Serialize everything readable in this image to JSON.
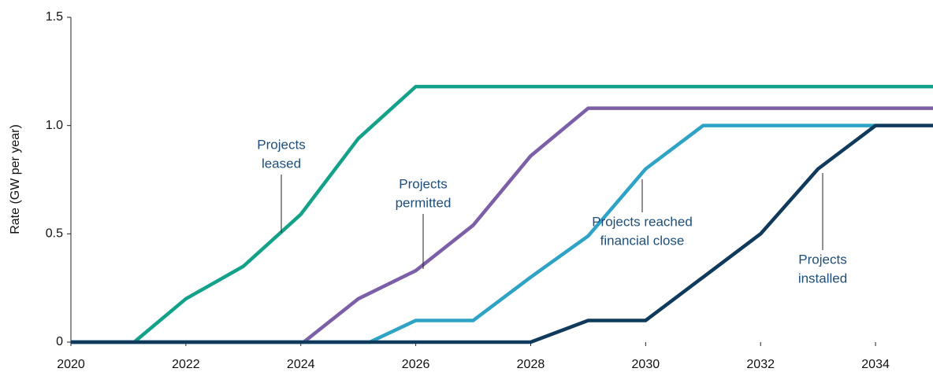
{
  "chart_data": {
    "type": "line",
    "y_label": "Rate (GW per year)",
    "xlim": [
      2020,
      2035
    ],
    "xticks": [
      2020,
      2022,
      2024,
      2026,
      2028,
      2030,
      2032,
      2034
    ],
    "ylim": [
      0,
      1.5
    ],
    "yticks": [
      0,
      0.5,
      {
        "value": 1,
        "label": "1.0"
      },
      1.5
    ],
    "series": [
      {
        "name": "Projects leased",
        "color": "#13a18a",
        "x": [
          2020,
          2021.1,
          2022,
          2023,
          2024,
          2025,
          2026,
          2035
        ],
        "values": [
          0,
          0,
          0.2,
          0.35,
          0.59,
          0.94,
          1.18,
          1.18
        ]
      },
      {
        "name": "Projects permitted",
        "color": "#7d5fa8",
        "x": [
          2020,
          2024.05,
          2025,
          2026,
          2027,
          2028,
          2029,
          2035
        ],
        "values": [
          0,
          0,
          0.2,
          0.33,
          0.54,
          0.86,
          1.08,
          1.08
        ]
      },
      {
        "name": "Projects reached financial close",
        "color": "#2ea3c5",
        "x": [
          2020,
          2025.2,
          2026,
          2027,
          2028,
          2029,
          2030,
          2031,
          2034
        ],
        "values": [
          0,
          0,
          0.1,
          0.1,
          0.3,
          0.49,
          0.8,
          1.0,
          1.0
        ]
      },
      {
        "name": "Projects installed",
        "color": "#0f3a5c",
        "x": [
          2020,
          2028,
          2029,
          2030,
          2031,
          2032,
          2033,
          2034,
          2035
        ],
        "values": [
          0,
          0,
          0.1,
          0.1,
          0.3,
          0.5,
          0.8,
          1.0,
          1.0
        ]
      }
    ],
    "annotations": [
      {
        "lines": [
          "Projects",
          "leased"
        ]
      },
      {
        "lines": [
          "Projects",
          "permitted"
        ]
      },
      {
        "lines": [
          "Projects reached",
          "financial close"
        ]
      },
      {
        "lines": [
          "Projects",
          "installed"
        ]
      }
    ]
  }
}
